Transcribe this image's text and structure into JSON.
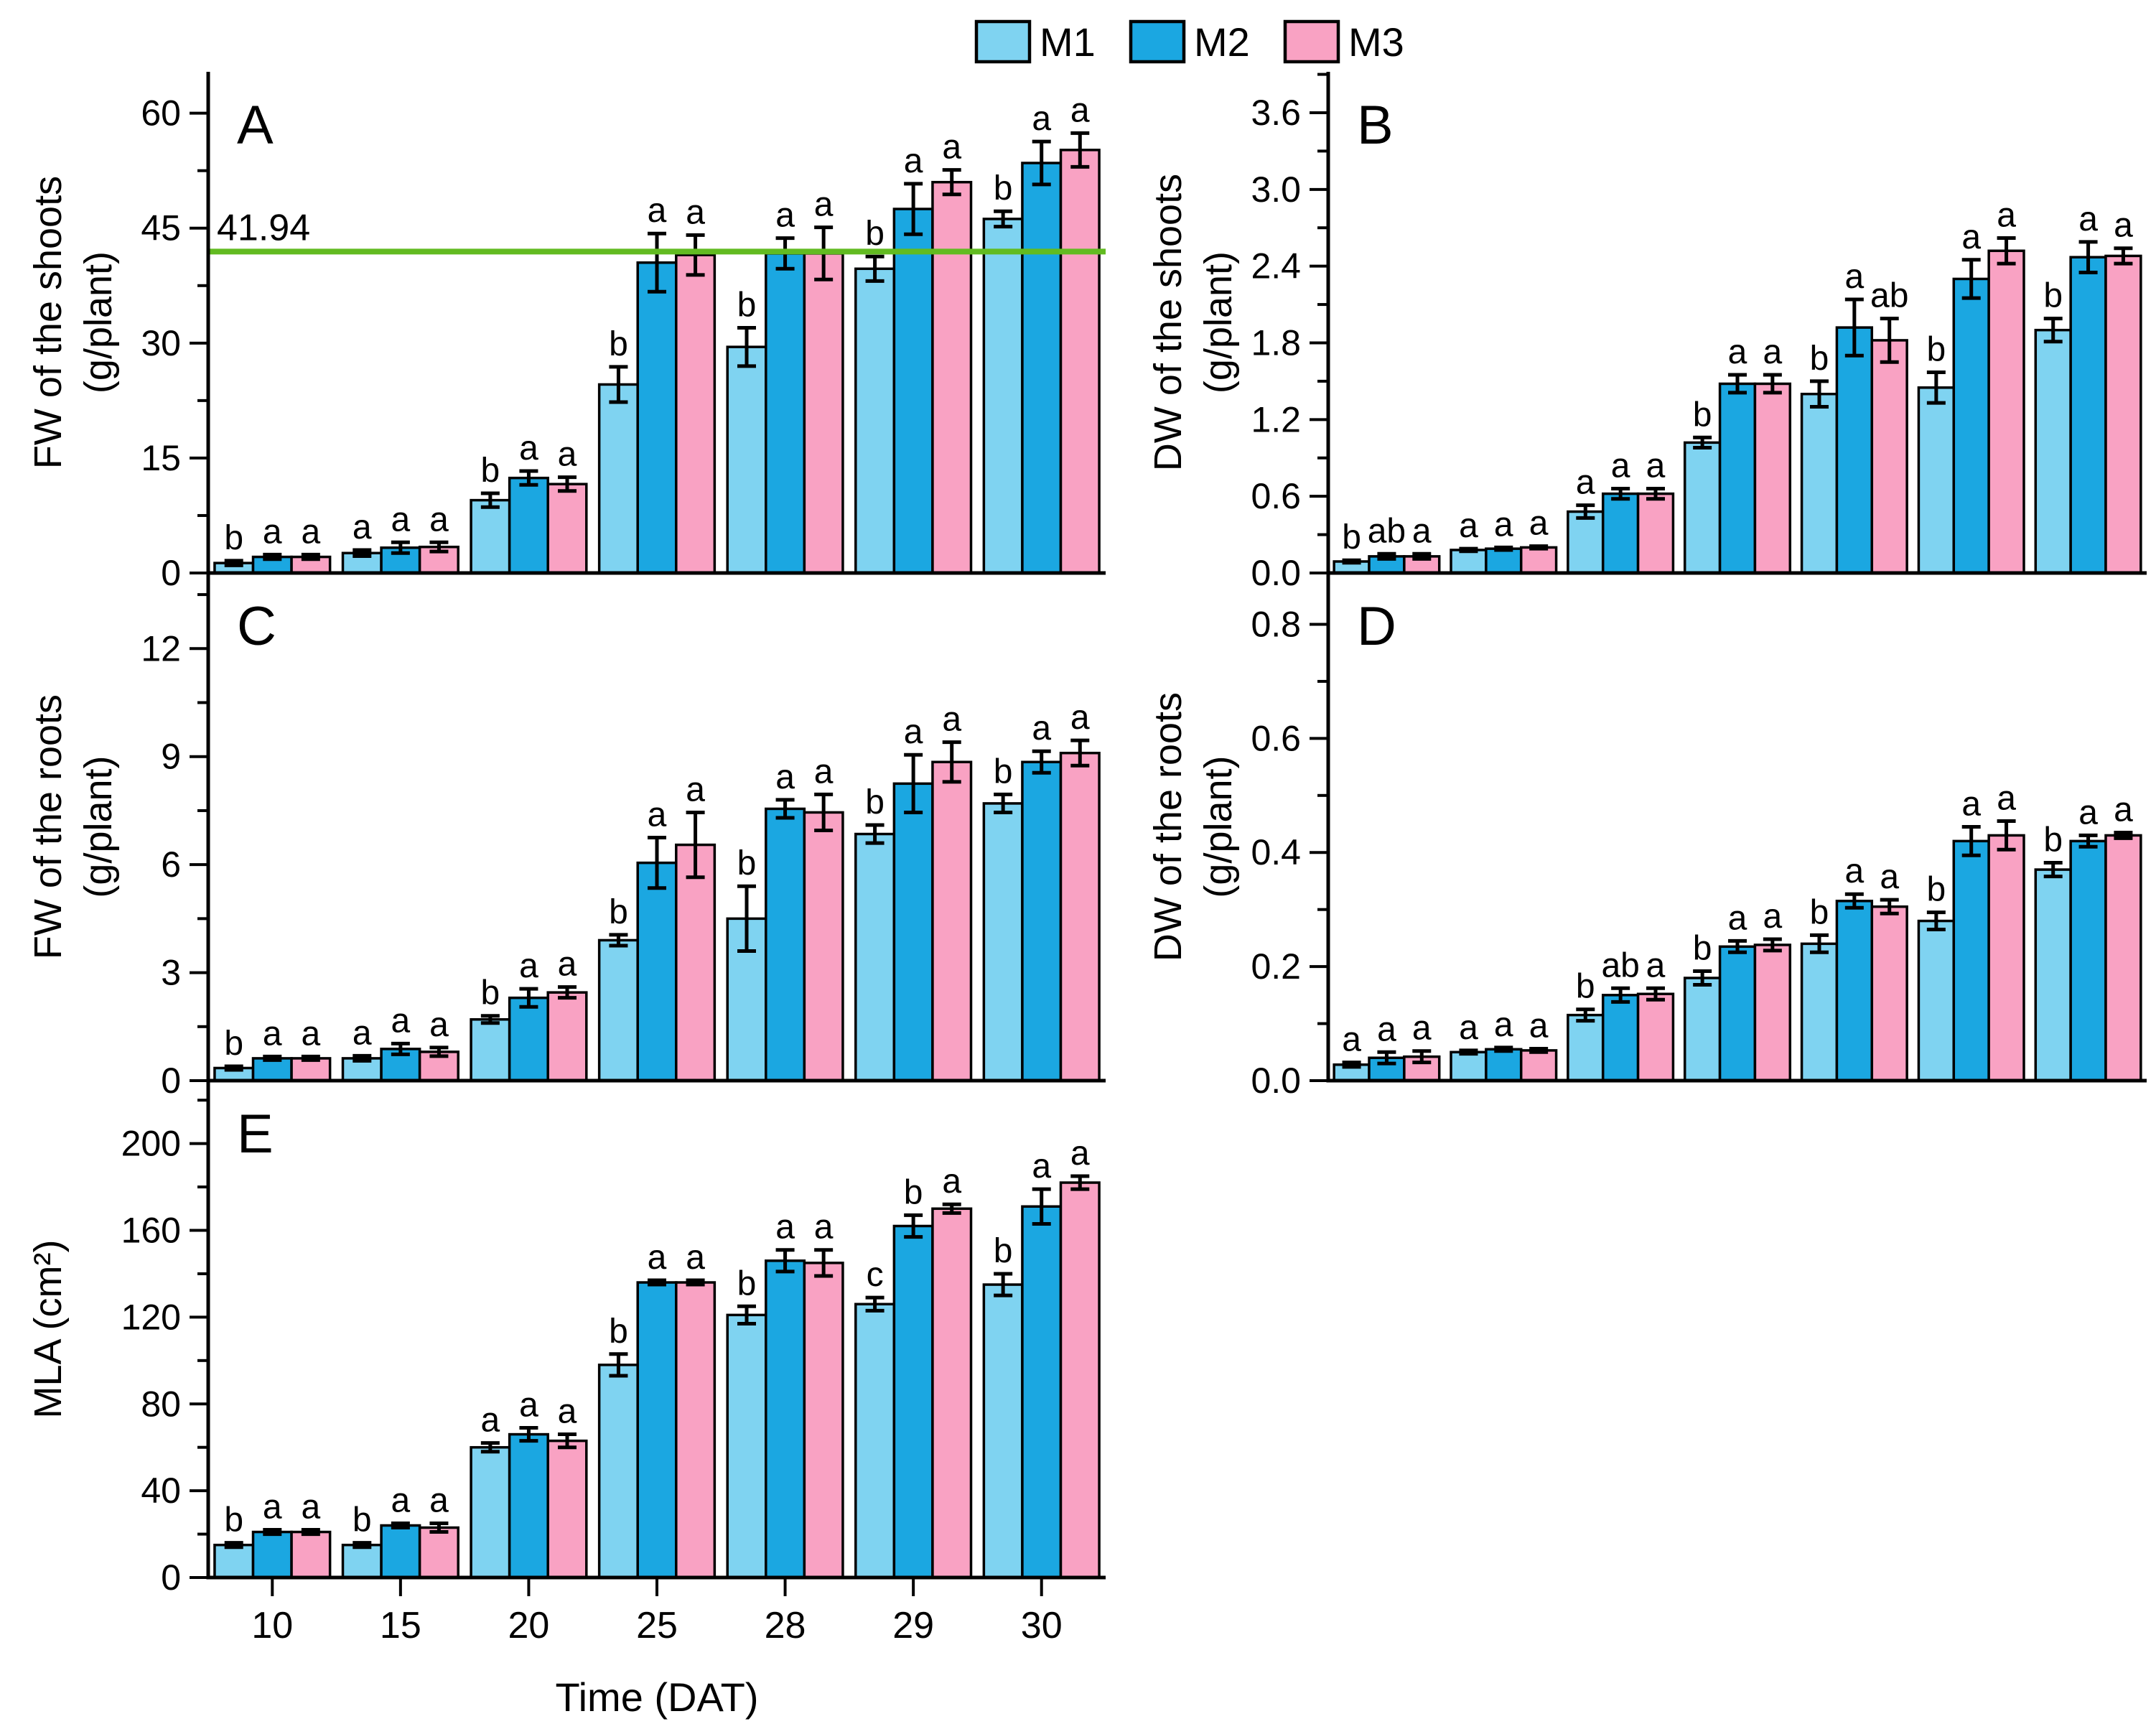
{
  "figure": {
    "legend": {
      "items": [
        {
          "label": "M1",
          "color": "#7FD3F1"
        },
        {
          "label": "M2",
          "color": "#1BA7E1"
        },
        {
          "label": "M3",
          "color": "#F9A2C3"
        }
      ]
    },
    "x_axis": {
      "title": "Time (DAT)",
      "categories": [
        "10",
        "15",
        "20",
        "25",
        "28",
        "29",
        "30"
      ]
    }
  },
  "chart_data": [
    {
      "id": "A",
      "type": "bar",
      "panel_label": "A",
      "ylabel_lines": [
        "FW of the shoots",
        "(g/plant)"
      ],
      "ylim": [
        0,
        65.4
      ],
      "minor_step": 7.5,
      "yticks": [
        {
          "v": 0,
          "label": "0"
        },
        {
          "v": 15,
          "label": "15"
        },
        {
          "v": 30,
          "label": "30"
        },
        {
          "v": 45,
          "label": "45"
        },
        {
          "v": 60,
          "label": "60"
        }
      ],
      "refline": {
        "value": 41.94,
        "label": "41.94",
        "color": "#62BB21"
      },
      "series": [
        {
          "name": "M1",
          "values": [
            1.3,
            2.6,
            9.5,
            24.6,
            29.5,
            39.7,
            46.2
          ],
          "errors": [
            0.3,
            0.4,
            0.9,
            2.3,
            2.5,
            1.6,
            1.0
          ],
          "letters": [
            "b",
            "a",
            "b",
            "b",
            "b",
            "b",
            "b"
          ]
        },
        {
          "name": "M2",
          "values": [
            2.1,
            3.3,
            12.4,
            40.5,
            41.7,
            47.5,
            53.5
          ],
          "errors": [
            0.3,
            0.7,
            0.9,
            3.8,
            2.0,
            3.3,
            2.8
          ],
          "letters": [
            "a",
            "a",
            "a",
            "a",
            "a",
            "a",
            "a"
          ]
        },
        {
          "name": "M3",
          "values": [
            2.1,
            3.4,
            11.6,
            41.5,
            41.7,
            51.0,
            55.2
          ],
          "errors": [
            0.3,
            0.6,
            0.9,
            2.6,
            3.4,
            1.6,
            2.2
          ],
          "letters": [
            "a",
            "a",
            "a",
            "a",
            "a",
            "a",
            "a"
          ]
        }
      ]
    },
    {
      "id": "B",
      "type": "bar",
      "panel_label": "B",
      "ylabel_lines": [
        "DW of the shoots",
        "(g/plant)"
      ],
      "ylim": [
        0,
        3.92
      ],
      "minor_step": 0.3,
      "yticks": [
        {
          "v": 0,
          "label": "0.0"
        },
        {
          "v": 0.6,
          "label": "0.6"
        },
        {
          "v": 1.2,
          "label": "1.2"
        },
        {
          "v": 1.8,
          "label": "1.8"
        },
        {
          "v": 2.4,
          "label": "2.4"
        },
        {
          "v": 3.0,
          "label": "3.0"
        },
        {
          "v": 3.6,
          "label": "3.6"
        }
      ],
      "series": [
        {
          "name": "M1",
          "values": [
            0.09,
            0.18,
            0.48,
            1.02,
            1.4,
            1.45,
            1.9
          ],
          "errors": [
            0.01,
            0.01,
            0.05,
            0.04,
            0.1,
            0.12,
            0.09
          ],
          "letters": [
            "b",
            "a",
            "a",
            "b",
            "b",
            "b",
            "b"
          ]
        },
        {
          "name": "M2",
          "values": [
            0.13,
            0.19,
            0.62,
            1.48,
            1.92,
            2.3,
            2.47
          ],
          "errors": [
            0.02,
            0.01,
            0.04,
            0.07,
            0.22,
            0.15,
            0.12
          ],
          "letters": [
            "ab",
            "a",
            "a",
            "a",
            "a",
            "a",
            "a"
          ]
        },
        {
          "name": "M3",
          "values": [
            0.13,
            0.2,
            0.62,
            1.48,
            1.82,
            2.52,
            2.48
          ],
          "errors": [
            0.02,
            0.01,
            0.04,
            0.07,
            0.17,
            0.1,
            0.06
          ],
          "letters": [
            "a",
            "a",
            "a",
            "a",
            "ab",
            "a",
            "a"
          ]
        }
      ]
    },
    {
      "id": "C",
      "type": "bar",
      "panel_label": "C",
      "ylabel_lines": [
        "FW of the roots",
        "(g/plant)"
      ],
      "ylim": [
        0,
        14.1
      ],
      "minor_step": 1.5,
      "yticks": [
        {
          "v": 0,
          "label": "0"
        },
        {
          "v": 3,
          "label": "3"
        },
        {
          "v": 6,
          "label": "6"
        },
        {
          "v": 9,
          "label": "9"
        },
        {
          "v": 12,
          "label": "12"
        }
      ],
      "series": [
        {
          "name": "M1",
          "values": [
            0.35,
            0.62,
            1.7,
            3.9,
            4.5,
            6.85,
            7.7
          ],
          "errors": [
            0.05,
            0.07,
            0.1,
            0.15,
            0.9,
            0.25,
            0.25
          ],
          "letters": [
            "b",
            "a",
            "b",
            "b",
            "b",
            "b",
            "b"
          ]
        },
        {
          "name": "M2",
          "values": [
            0.62,
            0.88,
            2.3,
            6.05,
            7.55,
            8.25,
            8.85
          ],
          "errors": [
            0.05,
            0.15,
            0.25,
            0.7,
            0.25,
            0.8,
            0.3
          ],
          "letters": [
            "a",
            "a",
            "a",
            "a",
            "a",
            "a",
            "a"
          ]
        },
        {
          "name": "M3",
          "values": [
            0.62,
            0.8,
            2.45,
            6.55,
            7.45,
            8.85,
            9.1
          ],
          "errors": [
            0.05,
            0.12,
            0.15,
            0.9,
            0.5,
            0.55,
            0.35
          ],
          "letters": [
            "a",
            "a",
            "a",
            "a",
            "a",
            "a",
            "a"
          ]
        }
      ]
    },
    {
      "id": "D",
      "type": "bar",
      "panel_label": "D",
      "ylabel_lines": [
        "DW of the roots",
        "(g/plant)"
      ],
      "ylim": [
        0,
        0.89
      ],
      "minor_step": 0.1,
      "yticks": [
        {
          "v": 0,
          "label": "0.0"
        },
        {
          "v": 0.2,
          "label": "0.2"
        },
        {
          "v": 0.4,
          "label": "0.4"
        },
        {
          "v": 0.6,
          "label": "0.6"
        },
        {
          "v": 0.8,
          "label": "0.8"
        }
      ],
      "series": [
        {
          "name": "M1",
          "values": [
            0.028,
            0.05,
            0.115,
            0.18,
            0.24,
            0.28,
            0.37
          ],
          "errors": [
            0.004,
            0.003,
            0.01,
            0.012,
            0.015,
            0.015,
            0.012
          ],
          "letters": [
            "a",
            "a",
            "b",
            "b",
            "b",
            "b",
            "b"
          ]
        },
        {
          "name": "M2",
          "values": [
            0.04,
            0.055,
            0.15,
            0.235,
            0.315,
            0.42,
            0.42
          ],
          "errors": [
            0.01,
            0.003,
            0.012,
            0.01,
            0.012,
            0.025,
            0.01
          ],
          "letters": [
            "a",
            "a",
            "ab",
            "a",
            "a",
            "a",
            "a"
          ]
        },
        {
          "name": "M3",
          "values": [
            0.042,
            0.053,
            0.152,
            0.238,
            0.305,
            0.43,
            0.43
          ],
          "errors": [
            0.01,
            0.003,
            0.01,
            0.01,
            0.012,
            0.025,
            0.005
          ],
          "letters": [
            "a",
            "a",
            "a",
            "a",
            "a",
            "a",
            "a"
          ]
        }
      ]
    },
    {
      "id": "E",
      "type": "bar",
      "panel_label": "E",
      "ylabel_lines": [
        "MLA (cm²)"
      ],
      "ylim": [
        0,
        229
      ],
      "minor_step": 20,
      "yticks": [
        {
          "v": 0,
          "label": "0"
        },
        {
          "v": 40,
          "label": "40"
        },
        {
          "v": 80,
          "label": "80"
        },
        {
          "v": 120,
          "label": "120"
        },
        {
          "v": 160,
          "label": "160"
        },
        {
          "v": 200,
          "label": "200"
        }
      ],
      "series": [
        {
          "name": "M1",
          "values": [
            15,
            15,
            60,
            98,
            121,
            126,
            135
          ],
          "errors": [
            1,
            1,
            2,
            5,
            4,
            3,
            5
          ],
          "letters": [
            "b",
            "b",
            "a",
            "b",
            "b",
            "c",
            "b"
          ]
        },
        {
          "name": "M2",
          "values": [
            21,
            24,
            66,
            136,
            146,
            162,
            171
          ],
          "errors": [
            1,
            1,
            3,
            1,
            5,
            5,
            8
          ],
          "letters": [
            "a",
            "a",
            "a",
            "a",
            "a",
            "b",
            "a"
          ]
        },
        {
          "name": "M3",
          "values": [
            21,
            23,
            63,
            136,
            145,
            170,
            182
          ],
          "errors": [
            1,
            2,
            3,
            1,
            6,
            2,
            3
          ],
          "letters": [
            "a",
            "a",
            "a",
            "a",
            "a",
            "a",
            "a"
          ]
        }
      ]
    }
  ]
}
